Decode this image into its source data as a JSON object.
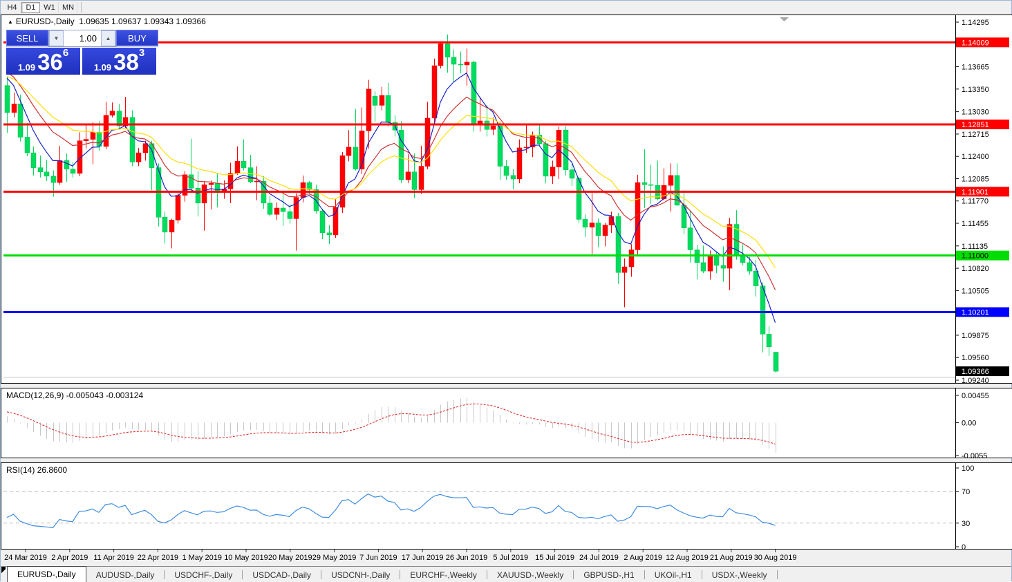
{
  "toolbar": {
    "timeframes": [
      "H4",
      "D1",
      "W1",
      "MN"
    ],
    "active_timeframe": "D1"
  },
  "chart": {
    "collapse_arrow": "▲",
    "symbol_title": "EURUSD-,Daily",
    "ohlc_text": "1.09635 1.09637 1.09343 1.09366",
    "colors": {
      "background": "#ffffff",
      "border": "#000000",
      "up_candle": "#FF0000",
      "up_candle_stroke": "#E00000",
      "down_candle": "#00DC5E",
      "down_candle_stroke": "#00BB4E",
      "shift_marker": "#a8a8a8"
    },
    "price_scale": {
      "max": 1.14295,
      "min": 1.0924,
      "ticks": [
        "1.14295",
        "1.13665",
        "1.13350",
        "1.13030",
        "1.12715",
        "1.12400",
        "1.12085",
        "1.11770",
        "1.11455",
        "1.11135",
        "1.10820",
        "1.10505",
        "1.09875",
        "1.09560",
        "1.09240"
      ]
    },
    "price_labels": [
      {
        "value": "1.14009",
        "bg": "#FF0000",
        "fg": "#FFFFFF"
      },
      {
        "value": "1.12851",
        "bg": "#FF0000",
        "fg": "#FFFFFF"
      },
      {
        "value": "1.11901",
        "bg": "#FF0000",
        "fg": "#FFFFFF"
      },
      {
        "value": "1.11000",
        "bg": "#00DD00",
        "fg": "#000000"
      },
      {
        "value": "1.10201",
        "bg": "#0000FF",
        "fg": "#FFFFFF"
      },
      {
        "value": "1.09366",
        "bg": "#000000",
        "fg": "#FFFFFF"
      }
    ],
    "hlines": [
      {
        "value": 1.14009,
        "color": "#FF0000",
        "width": 3
      },
      {
        "value": 1.12851,
        "color": "#FF0000",
        "width": 3
      },
      {
        "value": 1.11901,
        "color": "#FF0000",
        "width": 3
      },
      {
        "value": 1.11,
        "color": "#00DD00",
        "width": 3
      },
      {
        "value": 1.10201,
        "color": "#0000FF",
        "width": 3
      },
      {
        "value": 1.0928,
        "color": "#C8C8C8",
        "width": 1
      }
    ],
    "moving_averages": [
      {
        "period": 6,
        "color": "#1822C8"
      },
      {
        "period": 13,
        "color": "#CC3333"
      },
      {
        "period": 21,
        "color": "#FFDF00"
      }
    ],
    "seed_closes": [
      1.13,
      1.1295,
      1.1305,
      1.131,
      1.132,
      1.131,
      1.13,
      1.1292,
      1.1288,
      1.1295,
      1.1305,
      1.1315,
      1.1308,
      1.13,
      1.1295,
      1.1305,
      1.1318,
      1.133,
      1.134,
      1.1335,
      1.1325,
      1.133,
      1.1342,
      1.1355,
      1.1368,
      1.138,
      1.1392,
      1.14,
      1.1408,
      1.1415,
      1.14,
      1.138,
      1.136,
      1.134
    ],
    "candles": [
      [
        1.134,
        1.1352,
        1.1273,
        1.1302
      ],
      [
        1.1302,
        1.133,
        1.1295,
        1.1314
      ],
      [
        1.1314,
        1.1327,
        1.1261,
        1.1267
      ],
      [
        1.1267,
        1.1287,
        1.124,
        1.1245
      ],
      [
        1.1245,
        1.1254,
        1.1213,
        1.1224
      ],
      [
        1.1224,
        1.1241,
        1.121,
        1.1218
      ],
      [
        1.1218,
        1.1235,
        1.1205,
        1.1212
      ],
      [
        1.1212,
        1.122,
        1.1183,
        1.1203
      ],
      [
        1.1203,
        1.1255,
        1.12,
        1.1234
      ],
      [
        1.1234,
        1.1244,
        1.1204,
        1.1222
      ],
      [
        1.1222,
        1.1232,
        1.121,
        1.1216
      ],
      [
        1.1216,
        1.1274,
        1.1212,
        1.1262
      ],
      [
        1.1262,
        1.1284,
        1.1251,
        1.1264
      ],
      [
        1.1264,
        1.1288,
        1.1229,
        1.1274
      ],
      [
        1.1274,
        1.129,
        1.1248,
        1.1254
      ],
      [
        1.1254,
        1.1317,
        1.125,
        1.1298
      ],
      [
        1.1298,
        1.1316,
        1.1295,
        1.1304
      ],
      [
        1.1304,
        1.1314,
        1.1278,
        1.1283
      ],
      [
        1.1283,
        1.1324,
        1.128,
        1.1295
      ],
      [
        1.1295,
        1.1305,
        1.1226,
        1.1232
      ],
      [
        1.1232,
        1.1252,
        1.1226,
        1.1245
      ],
      [
        1.1245,
        1.1262,
        1.1234,
        1.1258
      ],
      [
        1.1258,
        1.1262,
        1.1192,
        1.1224
      ],
      [
        1.1224,
        1.123,
        1.1141,
        1.1154
      ],
      [
        1.1154,
        1.1162,
        1.1117,
        1.1133
      ],
      [
        1.1133,
        1.1152,
        1.111,
        1.115
      ],
      [
        1.115,
        1.1188,
        1.1145,
        1.1185
      ],
      [
        1.1185,
        1.1219,
        1.1176,
        1.1214
      ],
      [
        1.1214,
        1.1265,
        1.119,
        1.1195
      ],
      [
        1.1195,
        1.1219,
        1.1155,
        1.1174
      ],
      [
        1.1174,
        1.1205,
        1.1135,
        1.12
      ],
      [
        1.12,
        1.1206,
        1.1165,
        1.1202
      ],
      [
        1.1202,
        1.1216,
        1.1168,
        1.119
      ],
      [
        1.119,
        1.1206,
        1.118,
        1.1194
      ],
      [
        1.1194,
        1.1231,
        1.1174,
        1.1216
      ],
      [
        1.1216,
        1.1254,
        1.1214,
        1.1233
      ],
      [
        1.1233,
        1.1264,
        1.122,
        1.1224
      ],
      [
        1.1224,
        1.1242,
        1.1202,
        1.1204
      ],
      [
        1.1204,
        1.1226,
        1.1178,
        1.1205
      ],
      [
        1.1205,
        1.1212,
        1.1166,
        1.1174
      ],
      [
        1.1174,
        1.1184,
        1.1155,
        1.1158
      ],
      [
        1.1158,
        1.1175,
        1.115,
        1.1167
      ],
      [
        1.1167,
        1.1188,
        1.1142,
        1.1162
      ],
      [
        1.1162,
        1.1172,
        1.1145,
        1.1152
      ],
      [
        1.1152,
        1.1188,
        1.1107,
        1.1182
      ],
      [
        1.1182,
        1.1213,
        1.1175,
        1.1203
      ],
      [
        1.1203,
        1.1205,
        1.1186,
        1.1193
      ],
      [
        1.1193,
        1.12,
        1.1159,
        1.1163
      ],
      [
        1.1163,
        1.1166,
        1.1123,
        1.1132
      ],
      [
        1.1132,
        1.1143,
        1.1116,
        1.1129
      ],
      [
        1.1129,
        1.118,
        1.1125,
        1.1168
      ],
      [
        1.1168,
        1.1246,
        1.116,
        1.1241
      ],
      [
        1.1241,
        1.1277,
        1.1233,
        1.1253
      ],
      [
        1.1253,
        1.1307,
        1.122,
        1.1222
      ],
      [
        1.1222,
        1.1309,
        1.1215,
        1.1276
      ],
      [
        1.1276,
        1.1348,
        1.1251,
        1.1335
      ],
      [
        1.1325,
        1.1332,
        1.1289,
        1.1312
      ],
      [
        1.1312,
        1.1338,
        1.1305,
        1.1326
      ],
      [
        1.1326,
        1.1344,
        1.1282,
        1.1288
      ],
      [
        1.1288,
        1.1298,
        1.1268,
        1.1277
      ],
      [
        1.1277,
        1.129,
        1.1202,
        1.1207
      ],
      [
        1.1207,
        1.1243,
        1.1202,
        1.1218
      ],
      [
        1.1218,
        1.1244,
        1.1181,
        1.1193
      ],
      [
        1.1193,
        1.1255,
        1.1187,
        1.1226
      ],
      [
        1.1226,
        1.1317,
        1.1222,
        1.1294
      ],
      [
        1.1294,
        1.1378,
        1.1285,
        1.1368
      ],
      [
        1.1368,
        1.1402,
        1.1364,
        1.1399
      ],
      [
        1.1399,
        1.1412,
        1.1358,
        1.138
      ],
      [
        1.138,
        1.1391,
        1.1345,
        1.137
      ],
      [
        1.137,
        1.1388,
        1.1357,
        1.1369
      ],
      [
        1.1369,
        1.1392,
        1.134,
        1.1373
      ],
      [
        1.1373,
        1.1375,
        1.1275,
        1.1285
      ],
      [
        1.1285,
        1.1322,
        1.1275,
        1.129
      ],
      [
        1.129,
        1.1312,
        1.1268,
        1.1278
      ],
      [
        1.1278,
        1.1295,
        1.127,
        1.1283
      ],
      [
        1.1283,
        1.1289,
        1.1207,
        1.1226
      ],
      [
        1.1226,
        1.1235,
        1.1207,
        1.1213
      ],
      [
        1.1213,
        1.1222,
        1.1193,
        1.1208
      ],
      [
        1.1208,
        1.1264,
        1.1202,
        1.1252
      ],
      [
        1.1252,
        1.1286,
        1.1245,
        1.1253
      ],
      [
        1.1253,
        1.1275,
        1.1239,
        1.127
      ],
      [
        1.127,
        1.1284,
        1.1255,
        1.1258
      ],
      [
        1.1258,
        1.1262,
        1.1202,
        1.1212
      ],
      [
        1.1212,
        1.1234,
        1.1201,
        1.1225
      ],
      [
        1.1225,
        1.1282,
        1.1208,
        1.1277
      ],
      [
        1.1277,
        1.1283,
        1.1213,
        1.1221
      ],
      [
        1.1221,
        1.1232,
        1.1198,
        1.1209
      ],
      [
        1.1209,
        1.1211,
        1.1146,
        1.1151
      ],
      [
        1.1151,
        1.1158,
        1.1126,
        1.114
      ],
      [
        1.114,
        1.1188,
        1.1101,
        1.1146
      ],
      [
        1.1146,
        1.1152,
        1.1112,
        1.1128
      ],
      [
        1.1128,
        1.1146,
        1.1113,
        1.1143
      ],
      [
        1.1143,
        1.1162,
        1.1132,
        1.1155
      ],
      [
        1.1155,
        1.116,
        1.106,
        1.1076
      ],
      [
        1.1076,
        1.1096,
        1.1027,
        1.1084
      ],
      [
        1.1084,
        1.1116,
        1.107,
        1.1108
      ],
      [
        1.1108,
        1.1214,
        1.1101,
        1.1203
      ],
      [
        1.1203,
        1.125,
        1.1167,
        1.12
      ],
      [
        1.12,
        1.1228,
        1.1173,
        1.1199
      ],
      [
        1.1199,
        1.1234,
        1.1178,
        1.118
      ],
      [
        1.118,
        1.1223,
        1.1178,
        1.1199
      ],
      [
        1.1199,
        1.123,
        1.1162,
        1.1213
      ],
      [
        1.1213,
        1.123,
        1.117,
        1.1171
      ],
      [
        1.1171,
        1.1192,
        1.113,
        1.1139
      ],
      [
        1.1139,
        1.1163,
        1.109,
        1.1108
      ],
      [
        1.1108,
        1.1115,
        1.1066,
        1.109
      ],
      [
        1.109,
        1.1114,
        1.1075,
        1.1078
      ],
      [
        1.1078,
        1.1107,
        1.1066,
        1.1099
      ],
      [
        1.1099,
        1.1106,
        1.1075,
        1.1086
      ],
      [
        1.1086,
        1.1113,
        1.1063,
        1.1082
      ],
      [
        1.1082,
        1.1153,
        1.1051,
        1.1144
      ],
      [
        1.1144,
        1.1164,
        1.1094,
        1.1101
      ],
      [
        1.1101,
        1.1116,
        1.1086,
        1.109
      ],
      [
        1.109,
        1.1098,
        1.1073,
        1.1078
      ],
      [
        1.1078,
        1.1094,
        1.1042,
        1.1057
      ],
      [
        1.1057,
        1.1062,
        1.0963,
        1.0989
      ],
      [
        1.0989,
        1.1,
        1.0958,
        1.0971
      ],
      [
        1.09635,
        1.09637,
        1.09343,
        1.09366
      ]
    ]
  },
  "trade_panel": {
    "sell_label": "SELL",
    "buy_label": "BUY",
    "volume": "1.00",
    "down_arrow": "▼",
    "up_arrow": "▲",
    "sell_price_small": "1.09",
    "sell_price_big": "36",
    "sell_price_sup": "6",
    "buy_price_small": "1.09",
    "buy_price_big": "38",
    "buy_price_sup": "3"
  },
  "macd": {
    "label": "MACD(12,26,9)",
    "values": "-0.005043 -0.003124",
    "fast": 12,
    "slow": 26,
    "signal_period": 9,
    "scale": [
      "0.00455",
      "0.00",
      "-0.0055"
    ],
    "bar_color": "#C8C8C8",
    "signal_color": "#E03030"
  },
  "rsi": {
    "label": "RSI(14)",
    "value": "26.8600",
    "period": 14,
    "scale": [
      "100",
      "70",
      "30",
      "0"
    ],
    "levels": [
      70,
      30
    ],
    "line_color": "#3F8CDE",
    "level_color": "#BFBFBF"
  },
  "x_axis": {
    "dates": [
      "24 Mar 2019",
      "2 Apr 2019",
      "11 Apr 2019",
      "22 Apr 2019",
      "1 May 2019",
      "10 May 2019",
      "20 May 2019",
      "29 May 2019",
      "7 Jun 2019",
      "17 Jun 2019",
      "26 Jun 2019",
      "5 Jul 2019",
      "15 Jul 2019",
      "24 Jul 2019",
      "2 Aug 2019",
      "12 Aug 2019",
      "21 Aug 2019",
      "30 Aug 2019"
    ]
  },
  "tabs": {
    "items": [
      "EURUSD-,Daily",
      "AUDUSD-,Daily",
      "USDCHF-,Daily",
      "USDCAD-,Daily",
      "USDCNH-,Daily",
      "EURCHF-,Weekly",
      "XAUUSD-,Weekly",
      "GBPUSD-,H1",
      "UKOil-,H1",
      "USDX-,Weekly"
    ],
    "active": "EURUSD-,Daily"
  }
}
